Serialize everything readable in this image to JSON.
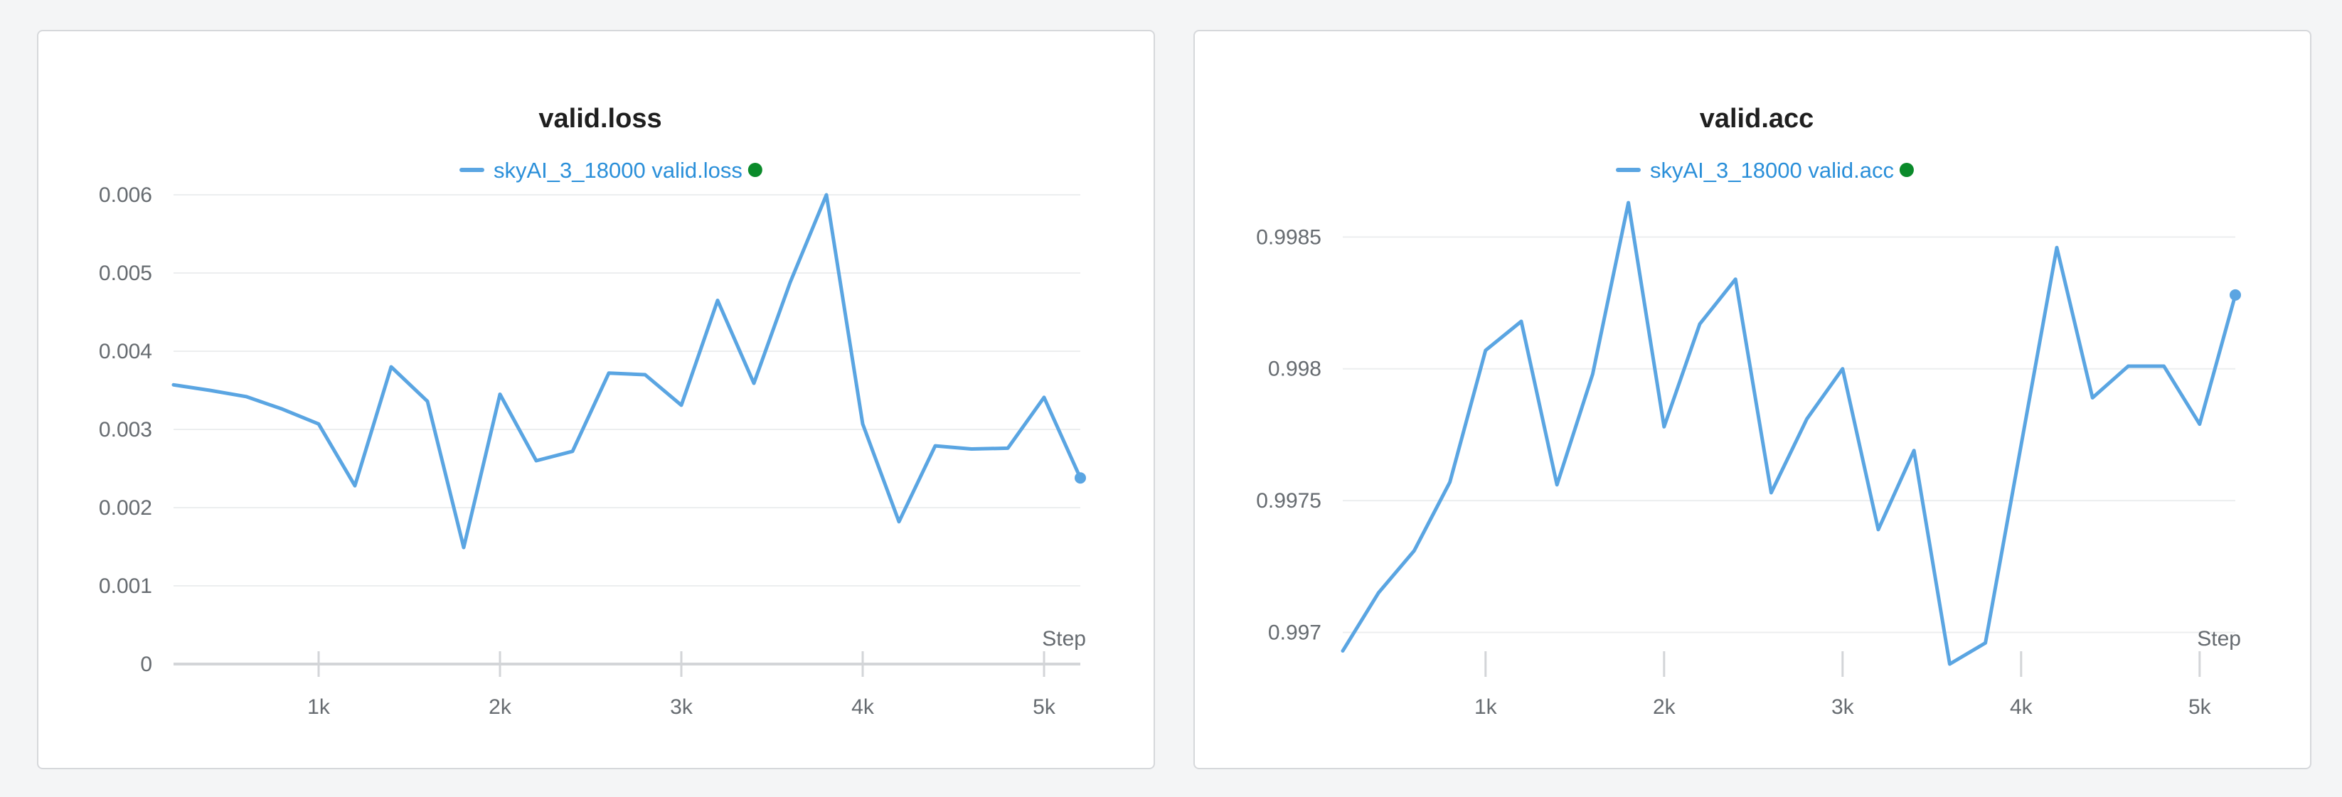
{
  "colors": {
    "series": "#5aa5e2",
    "legend_text": "#2a8fd9",
    "status_dot": "#0a8a2a"
  },
  "chart_data": [
    {
      "type": "line",
      "title": "valid.loss",
      "xlabel": "Step",
      "ylabel": "",
      "legend": "top-center",
      "grid": true,
      "xlim": [
        200,
        5200
      ],
      "ylim": [
        0,
        0.006
      ],
      "xticks": [
        1000,
        2000,
        3000,
        4000,
        5000
      ],
      "xtick_labels": [
        "1k",
        "2k",
        "3k",
        "4k",
        "5k"
      ],
      "yticks": [
        0,
        0.001,
        0.002,
        0.003,
        0.004,
        0.005,
        0.006
      ],
      "ytick_labels": [
        "0",
        "0.001",
        "0.002",
        "0.003",
        "0.004",
        "0.005",
        "0.006"
      ],
      "series": [
        {
          "name": "skyAI_3_18000 valid.loss",
          "x": [
            200,
            400,
            600,
            800,
            1000,
            1200,
            1400,
            1600,
            1800,
            2000,
            2200,
            2400,
            2600,
            2800,
            3000,
            3200,
            3400,
            3600,
            3800,
            4000,
            4200,
            4400,
            4600,
            4800,
            5000,
            5200
          ],
          "values": [
            0.00357,
            0.0035,
            0.00342,
            0.00326,
            0.00307,
            0.00228,
            0.0038,
            0.00336,
            0.00149,
            0.00345,
            0.0026,
            0.00272,
            0.00372,
            0.0037,
            0.00331,
            0.00465,
            0.00359,
            0.00488,
            0.006,
            0.00307,
            0.00182,
            0.00279,
            0.00275,
            0.00276,
            0.00341,
            0.00238
          ]
        }
      ]
    },
    {
      "type": "line",
      "title": "valid.acc",
      "xlabel": "Step",
      "ylabel": "",
      "legend": "top-center",
      "grid": true,
      "xlim": [
        200,
        5200
      ],
      "ylim": [
        0.99688,
        0.99866
      ],
      "xticks": [
        1000,
        2000,
        3000,
        4000,
        5000
      ],
      "xtick_labels": [
        "1k",
        "2k",
        "3k",
        "4k",
        "5k"
      ],
      "yticks": [
        0.997,
        0.9975,
        0.998,
        0.9985
      ],
      "ytick_labels": [
        "0.997",
        "0.9975",
        "0.998",
        "0.9985"
      ],
      "series": [
        {
          "name": "skyAI_3_18000 valid.acc",
          "x": [
            200,
            400,
            600,
            800,
            1000,
            1200,
            1400,
            1600,
            1800,
            2000,
            2200,
            2400,
            2600,
            2800,
            3000,
            3200,
            3400,
            3600,
            3800,
            4000,
            4200,
            4400,
            4600,
            4800,
            5000,
            5200
          ],
          "values": [
            0.99693,
            0.99715,
            0.99731,
            0.99757,
            0.99807,
            0.99818,
            0.99756,
            0.99798,
            0.99863,
            0.99778,
            0.99817,
            0.99834,
            0.99753,
            0.99781,
            0.998,
            0.99739,
            0.99769,
            0.99688,
            0.99696,
            0.99771,
            0.99846,
            0.99789,
            0.99801,
            0.99801,
            0.99779,
            0.99828
          ]
        }
      ]
    }
  ]
}
